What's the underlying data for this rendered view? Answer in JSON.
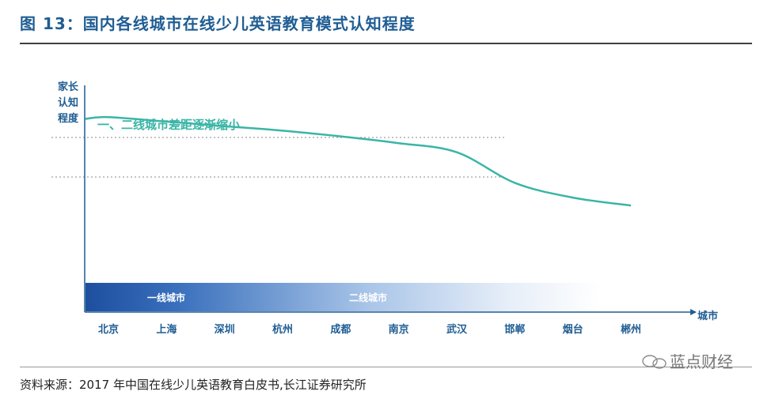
{
  "figure": {
    "title": "图 13：国内各线城市在线少儿英语教育模式认知程度",
    "source": "资料来源：2017 年中国在线少儿英语教育白皮书,长江证券研究所",
    "watermark": "蓝点财经"
  },
  "colors": {
    "title": "#1f5d93",
    "line": "#3ab5a6",
    "band_start": "#1d4f9e",
    "band_end": "#ffffff",
    "axis_text": "#1f5d93"
  },
  "chart_data": {
    "type": "line",
    "ylabel": "家长认知程度",
    "ylabel_lines": [
      "家长",
      "认知",
      "程度"
    ],
    "xlabel": "城市",
    "annotation": "一、二线城市差距逐渐缩小",
    "categories": [
      "北京",
      "上海",
      "深圳",
      "杭州",
      "成都",
      "南京",
      "武汉",
      "邯郸",
      "烟台",
      "郴州"
    ],
    "bands": [
      "一线城市",
      "二线城市",
      ""
    ],
    "series": [
      {
        "values": [
          0.86,
          0.84,
          0.82,
          0.8,
          0.775,
          0.745,
          0.705,
          0.57,
          0.505,
          0.47
        ]
      }
    ],
    "ylim": [
      0,
      1
    ],
    "y_ticks": false,
    "grid": false,
    "reference_lines": "dotted"
  }
}
